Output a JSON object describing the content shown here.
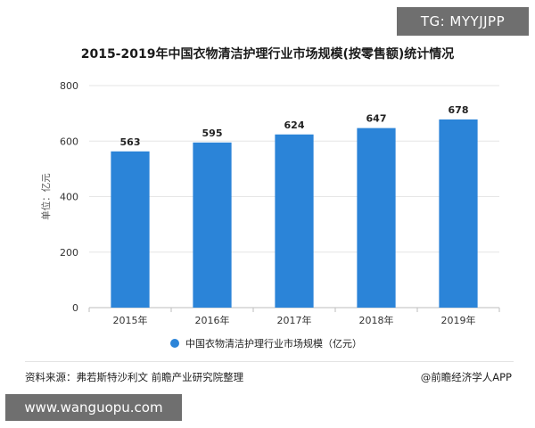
{
  "header": {
    "tag": "TG: MYYJJPP"
  },
  "chart_data": {
    "type": "bar",
    "title": "2015-2019年中国衣物清洁护理行业市场规模(按零售额)统计情况",
    "xlabel": "",
    "ylabel": "单位：亿元",
    "categories": [
      "2015年",
      "2016年",
      "2017年",
      "2018年",
      "2019年"
    ],
    "series": [
      {
        "name": "中国衣物清洁护理行业市场规模（亿元）",
        "values": [
          563,
          595,
          624,
          647,
          678
        ]
      }
    ],
    "ylim": [
      0,
      800
    ],
    "yticks": [
      0,
      200,
      400,
      600,
      800
    ],
    "grid": true,
    "legend_position": "bottom",
    "bar_color": "#2b84d8",
    "data_labels": true
  },
  "footer": {
    "source": "资料来源：弗若斯特沙利文 前瞻产业研究院整理",
    "credit": "@前瞻经济学人APP",
    "site": "www.wanguopu.com"
  }
}
